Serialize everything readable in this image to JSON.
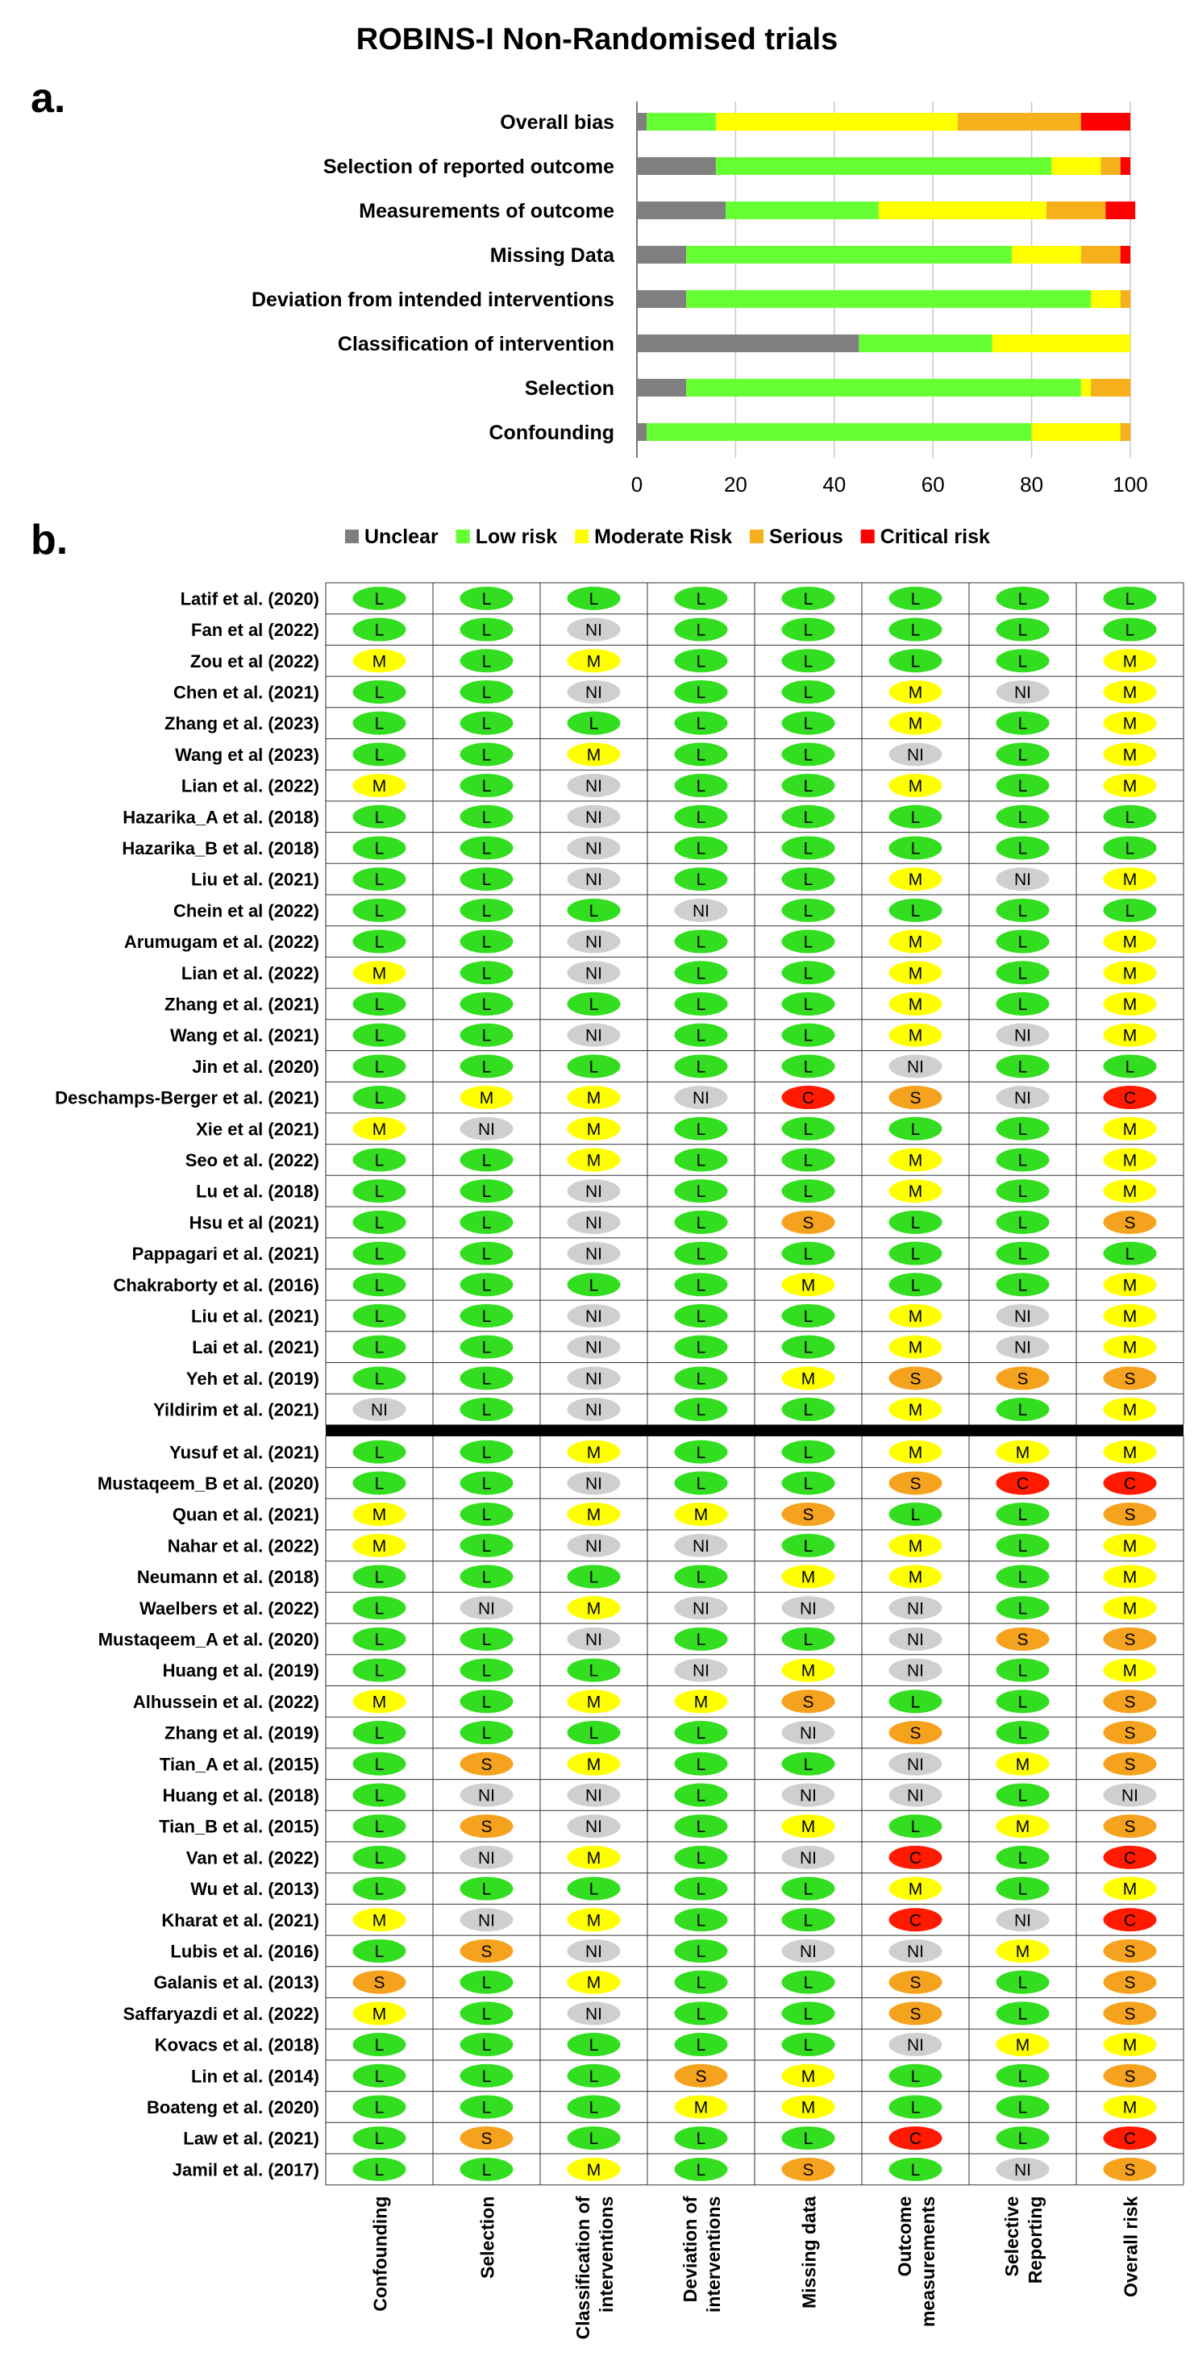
{
  "title": "ROBINS-I Non-Randomised trials",
  "panel_a_label": "a.",
  "panel_b_label": "b.",
  "colors": {
    "Unclear": "#7f7f7f",
    "Low risk": "#66ff33",
    "Moderate Risk": "#ffff00",
    "Serious": "#f6b01c",
    "Critical risk": "#ff0000"
  },
  "chart_data": [
    {
      "type": "bar",
      "orientation": "horizontal",
      "stacked": true,
      "categories": [
        "Overall bias",
        "Selection of reported outcome",
        "Measurements of outcome",
        "Missing Data",
        "Deviation from intended interventions",
        "Classification of intervention",
        "Selection",
        "Confounding"
      ],
      "series": [
        {
          "name": "Unclear",
          "values": [
            2,
            16,
            18,
            10,
            10,
            45,
            10,
            2
          ]
        },
        {
          "name": "Low risk",
          "values": [
            14,
            68,
            31,
            66,
            82,
            27,
            80,
            78
          ]
        },
        {
          "name": "Moderate Risk",
          "values": [
            49,
            10,
            34,
            14,
            6,
            28,
            2,
            18
          ]
        },
        {
          "name": "Serious",
          "values": [
            25,
            4,
            12,
            8,
            2,
            0,
            8,
            2
          ]
        },
        {
          "name": "Critical risk",
          "values": [
            10,
            2,
            6,
            2,
            0,
            0,
            0,
            0
          ]
        }
      ],
      "xlim": [
        0,
        100
      ],
      "xticks": [
        "0",
        "20",
        "40",
        "60",
        "80",
        "100"
      ],
      "grid": true,
      "legend": "bottom"
    },
    {
      "type": "table",
      "columns": [
        [
          "Confounding"
        ],
        [
          "Selection"
        ],
        [
          "Classification of",
          "interventions"
        ],
        [
          "Deviation of",
          "interventions"
        ],
        [
          "Missing data"
        ],
        [
          "Outcome",
          "measurements"
        ],
        [
          "Selective",
          "Reporting"
        ],
        [
          "Overall risk"
        ]
      ],
      "group1": [
        {
          "study": "Latif et al. (2020)",
          "ratings": [
            "L",
            "L",
            "L",
            "L",
            "L",
            "L",
            "L",
            "L"
          ]
        },
        {
          "study": "Fan et al (2022)",
          "ratings": [
            "L",
            "L",
            "NI",
            "L",
            "L",
            "L",
            "L",
            "L"
          ]
        },
        {
          "study": "Zou et al (2022)",
          "ratings": [
            "M",
            "L",
            "M",
            "L",
            "L",
            "L",
            "L",
            "M"
          ]
        },
        {
          "study": "Chen et al. (2021)",
          "ratings": [
            "L",
            "L",
            "NI",
            "L",
            "L",
            "M",
            "NI",
            "M"
          ]
        },
        {
          "study": "Zhang et al. (2023)",
          "ratings": [
            "L",
            "L",
            "L",
            "L",
            "L",
            "M",
            "L",
            "M"
          ]
        },
        {
          "study": "Wang  et al (2023)",
          "ratings": [
            "L",
            "L",
            "M",
            "L",
            "L",
            "NI",
            "L",
            "M"
          ]
        },
        {
          "study": "Lian et al. (2022)",
          "ratings": [
            "M",
            "L",
            "NI",
            "L",
            "L",
            "M",
            "L",
            "M"
          ]
        },
        {
          "study": "Hazarika_A et al. (2018)",
          "ratings": [
            "L",
            "L",
            "NI",
            "L",
            "L",
            "L",
            "L",
            "L"
          ]
        },
        {
          "study": "Hazarika_B et al. (2018)",
          "ratings": [
            "L",
            "L",
            "NI",
            "L",
            "L",
            "L",
            "L",
            "L"
          ]
        },
        {
          "study": "Liu et al. (2021)",
          "ratings": [
            "L",
            "L",
            "NI",
            "L",
            "L",
            "M",
            "NI",
            "M"
          ]
        },
        {
          "study": "Chein et al (2022)",
          "ratings": [
            "L",
            "L",
            "L",
            "NI",
            "L",
            "L",
            "L",
            "L"
          ]
        },
        {
          "study": "Arumugam et al. (2022)",
          "ratings": [
            "L",
            "L",
            "NI",
            "L",
            "L",
            "M",
            "L",
            "M"
          ]
        },
        {
          "study": "Lian et al. (2022)",
          "ratings": [
            "M",
            "L",
            "NI",
            "L",
            "L",
            "M",
            "L",
            "M"
          ]
        },
        {
          "study": "Zhang et al. (2021)",
          "ratings": [
            "L",
            "L",
            "L",
            "L",
            "L",
            "M",
            "L",
            "M"
          ]
        },
        {
          "study": "Wang et al. (2021)",
          "ratings": [
            "L",
            "L",
            "NI",
            "L",
            "L",
            "M",
            "NI",
            "M"
          ]
        },
        {
          "study": "Jin et al. (2020)",
          "ratings": [
            "L",
            "L",
            "L",
            "L",
            "L",
            "NI",
            "L",
            "L"
          ]
        },
        {
          "study": "Deschamps-Berger et al. (2021)",
          "ratings": [
            "L",
            "M",
            "M",
            "NI",
            "C",
            "S",
            "NI",
            "C"
          ]
        },
        {
          "study": "Xie et al (2021)",
          "ratings": [
            "M",
            "NI",
            "M",
            "L",
            "L",
            "L",
            "L",
            "M"
          ]
        },
        {
          "study": "Seo et al. (2022)",
          "ratings": [
            "L",
            "L",
            "M",
            "L",
            "L",
            "M",
            "L",
            "M"
          ]
        },
        {
          "study": "Lu et al. (2018)",
          "ratings": [
            "L",
            "L",
            "NI",
            "L",
            "L",
            "M",
            "L",
            "M"
          ]
        },
        {
          "study": "Hsu et al (2021)",
          "ratings": [
            "L",
            "L",
            "NI",
            "L",
            "S",
            "L",
            "L",
            "S"
          ]
        },
        {
          "study": "Pappagari et al. (2021)",
          "ratings": [
            "L",
            "L",
            "NI",
            "L",
            "L",
            "L",
            "L",
            "L"
          ]
        },
        {
          "study": "Chakraborty et al. (2016)",
          "ratings": [
            "L",
            "L",
            "L",
            "L",
            "M",
            "L",
            "L",
            "M"
          ]
        },
        {
          "study": "Liu et al. (2021)",
          "ratings": [
            "L",
            "L",
            "NI",
            "L",
            "L",
            "M",
            "NI",
            "M"
          ]
        },
        {
          "study": "Lai et al. (2021)",
          "ratings": [
            "L",
            "L",
            "NI",
            "L",
            "L",
            "M",
            "NI",
            "M"
          ]
        },
        {
          "study": "Yeh et al. (2019)",
          "ratings": [
            "L",
            "L",
            "NI",
            "L",
            "M",
            "S",
            "S",
            "S"
          ]
        },
        {
          "study": "Yildirim et al. (2021)",
          "ratings": [
            "NI",
            "L",
            "NI",
            "L",
            "L",
            "M",
            "L",
            "M"
          ]
        }
      ],
      "group2": [
        {
          "study": "Yusuf et al. (2021)",
          "ratings": [
            "L",
            "L",
            "M",
            "L",
            "L",
            "M",
            "M",
            "M"
          ]
        },
        {
          "study": "Mustaqeem_B et al. (2020)",
          "ratings": [
            "L",
            "L",
            "NI",
            "L",
            "L",
            "S",
            "C",
            "C"
          ]
        },
        {
          "study": "Quan et al. (2021)",
          "ratings": [
            "M",
            "L",
            "M",
            "M",
            "S",
            "L",
            "L",
            "S"
          ]
        },
        {
          "study": "Nahar et al. (2022)",
          "ratings": [
            "M",
            "L",
            "NI",
            "NI",
            "L",
            "M",
            "L",
            "M"
          ]
        },
        {
          "study": "Neumann et al. (2018)",
          "ratings": [
            "L",
            "L",
            "L",
            "L",
            "M",
            "M",
            "L",
            "M"
          ]
        },
        {
          "study": "Waelbers et al. (2022)",
          "ratings": [
            "L",
            "NI",
            "M",
            "NI",
            "NI",
            "NI",
            "L",
            "M"
          ]
        },
        {
          "study": "Mustaqeem_A et al. (2020)",
          "ratings": [
            "L",
            "L",
            "NI",
            "L",
            "L",
            "NI",
            "S",
            "S"
          ]
        },
        {
          "study": "Huang et al. (2019)",
          "ratings": [
            "L",
            "L",
            "L",
            "NI",
            "M",
            "NI",
            "L",
            "M"
          ]
        },
        {
          "study": "Alhussein et al. (2022)",
          "ratings": [
            "M",
            "L",
            "M",
            "M",
            "S",
            "L",
            "L",
            "S"
          ]
        },
        {
          "study": "Zhang et al. (2019)",
          "ratings": [
            "L",
            "L",
            "L",
            "L",
            "NI",
            "S",
            "L",
            "S"
          ]
        },
        {
          "study": "Tian_A et al. (2015)",
          "ratings": [
            "L",
            "S",
            "M",
            "L",
            "L",
            "NI",
            "M",
            "S"
          ]
        },
        {
          "study": "Huang et al. (2018)",
          "ratings": [
            "L",
            "NI",
            "NI",
            "L",
            "NI",
            "NI",
            "L",
            "NI"
          ]
        },
        {
          "study": "Tian_B et al. (2015)",
          "ratings": [
            "L",
            "S",
            "NI",
            "L",
            "M",
            "L",
            "M",
            "S"
          ]
        },
        {
          "study": "Van et al. (2022)",
          "ratings": [
            "L",
            "NI",
            "M",
            "L",
            "NI",
            "C",
            "L",
            "C"
          ]
        },
        {
          "study": "Wu et al. (2013)",
          "ratings": [
            "L",
            "L",
            "L",
            "L",
            "L",
            "M",
            "L",
            "M"
          ]
        },
        {
          "study": "Kharat et al. (2021)",
          "ratings": [
            "M",
            "NI",
            "M",
            "L",
            "L",
            "C",
            "NI",
            "C"
          ]
        },
        {
          "study": "Lubis et al. (2016)",
          "ratings": [
            "L",
            "S",
            "NI",
            "L",
            "NI",
            "NI",
            "M",
            "S"
          ]
        },
        {
          "study": "Galanis et al. (2013)",
          "ratings": [
            "S",
            "L",
            "M",
            "L",
            "L",
            "S",
            "L",
            "S"
          ]
        },
        {
          "study": "Saffaryazdi et al. (2022)",
          "ratings": [
            "M",
            "L",
            "NI",
            "L",
            "L",
            "S",
            "L",
            "S"
          ]
        },
        {
          "study": "Kovacs et al. (2018)",
          "ratings": [
            "L",
            "L",
            "L",
            "L",
            "L",
            "NI",
            "M",
            "M"
          ]
        },
        {
          "study": "Lin et al. (2014)",
          "ratings": [
            "L",
            "L",
            "L",
            "S",
            "M",
            "L",
            "L",
            "S"
          ]
        },
        {
          "study": "Boateng et al. (2020)",
          "ratings": [
            "L",
            "L",
            "L",
            "M",
            "M",
            "L",
            "L",
            "M"
          ]
        },
        {
          "study": "Law et al. (2021)",
          "ratings": [
            "L",
            "S",
            "L",
            "L",
            "L",
            "C",
            "L",
            "C"
          ]
        },
        {
          "study": "Jamil et al. (2017)",
          "ratings": [
            "L",
            "L",
            "M",
            "L",
            "S",
            "L",
            "NI",
            "S"
          ]
        }
      ],
      "rating_colors": {
        "L": "#33dd1f",
        "M": "#ffff00",
        "NI": "#cfcfcf",
        "S": "#f5a21e",
        "C": "#ff1a00"
      }
    }
  ]
}
